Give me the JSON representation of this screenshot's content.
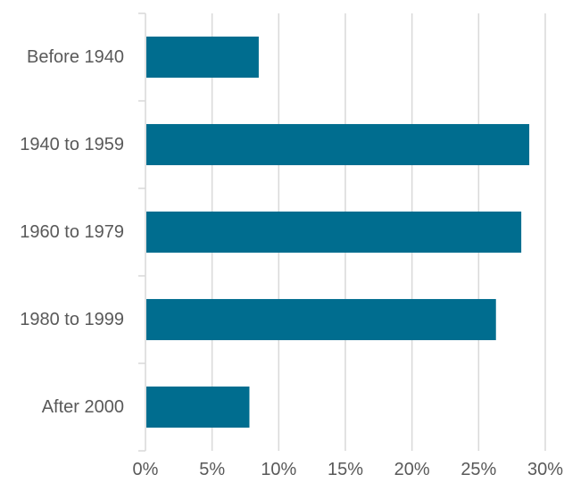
{
  "chart_data": {
    "type": "bar",
    "orientation": "horizontal",
    "categories": [
      "Before 1940",
      "1940 to 1959",
      "1960 to 1979",
      "1980 to 1999",
      "After 2000"
    ],
    "values": [
      8.5,
      28.8,
      28.2,
      26.3,
      7.8
    ],
    "xlim": [
      0,
      30
    ],
    "xticks": [
      "0%",
      "5%",
      "10%",
      "15%",
      "20%",
      "25%",
      "30%"
    ],
    "xtick_values": [
      0,
      5,
      10,
      15,
      20,
      25,
      30
    ],
    "grid": true,
    "legend": "none",
    "bar_color": "#006D8F",
    "grid_color": "#D9D9D9"
  }
}
